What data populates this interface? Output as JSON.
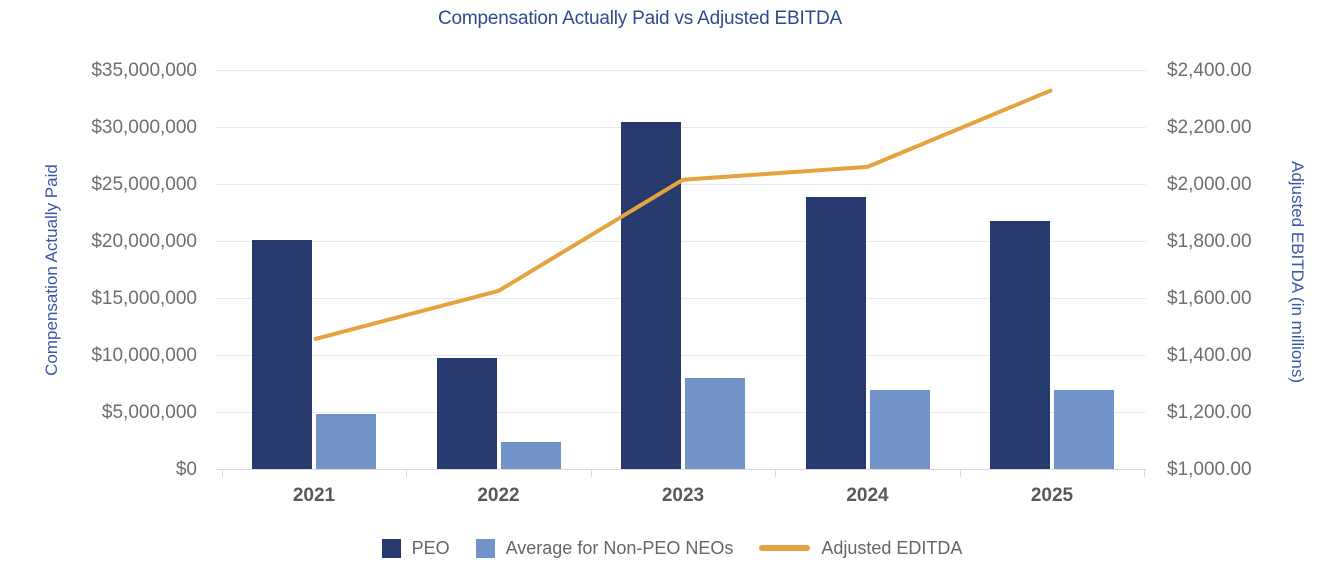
{
  "chart_data": {
    "type": "bar",
    "combo": "grouped bars on left axis with line series on right axis",
    "title": "Compensation Actually Paid vs Adjusted EBITDA",
    "categories": [
      "2021",
      "2022",
      "2023",
      "2024",
      "2025"
    ],
    "series": [
      {
        "name": "PEO",
        "type": "bar",
        "axis": "left",
        "color": "#263A6E",
        "values": [
          20100000,
          9750000,
          30400000,
          23900000,
          21800000
        ]
      },
      {
        "name": "Average for Non-PEO NEOs",
        "type": "bar",
        "axis": "left",
        "color": "#7193C7",
        "values": [
          4800000,
          2350000,
          8000000,
          6900000,
          6900000
        ]
      },
      {
        "name": "Adjusted EDITDA",
        "type": "line",
        "axis": "right",
        "color": "#E5A33D",
        "values": [
          1455,
          1625,
          2015,
          2060,
          2330
        ]
      }
    ],
    "left_axis": {
      "label": "Compensation Actually Paid",
      "min": 0,
      "max": 35000000,
      "tick_step": 5000000,
      "tick_labels_top_to_bottom": [
        "$35,000,000",
        "$30,000,000",
        "$25,000,000",
        "$20,000,000",
        "$15,000,000",
        "$10,000,000",
        "$5,000,000",
        "$0"
      ]
    },
    "right_axis": {
      "label": "Adjusted EBITDA (in millions)",
      "min": 1000,
      "max": 2400,
      "tick_step": 200,
      "tick_labels_top_to_bottom": [
        "$2,400.00",
        "$2,200.00",
        "$2,000.00",
        "$1,800.00",
        "$1,600.00",
        "$1,400.00",
        "$1,200.00",
        "$1,000.00"
      ]
    },
    "grid": true,
    "legend_position": "bottom"
  },
  "colors": {
    "title_text": "#2F4A8F",
    "axis_title_text": "#3A57A5",
    "tick_label_text": "#6E6E6E",
    "category_label_text": "#595959",
    "legend_text": "#666666",
    "gridline": "#E9E9E9",
    "axis_line": "#D9D9D9"
  }
}
